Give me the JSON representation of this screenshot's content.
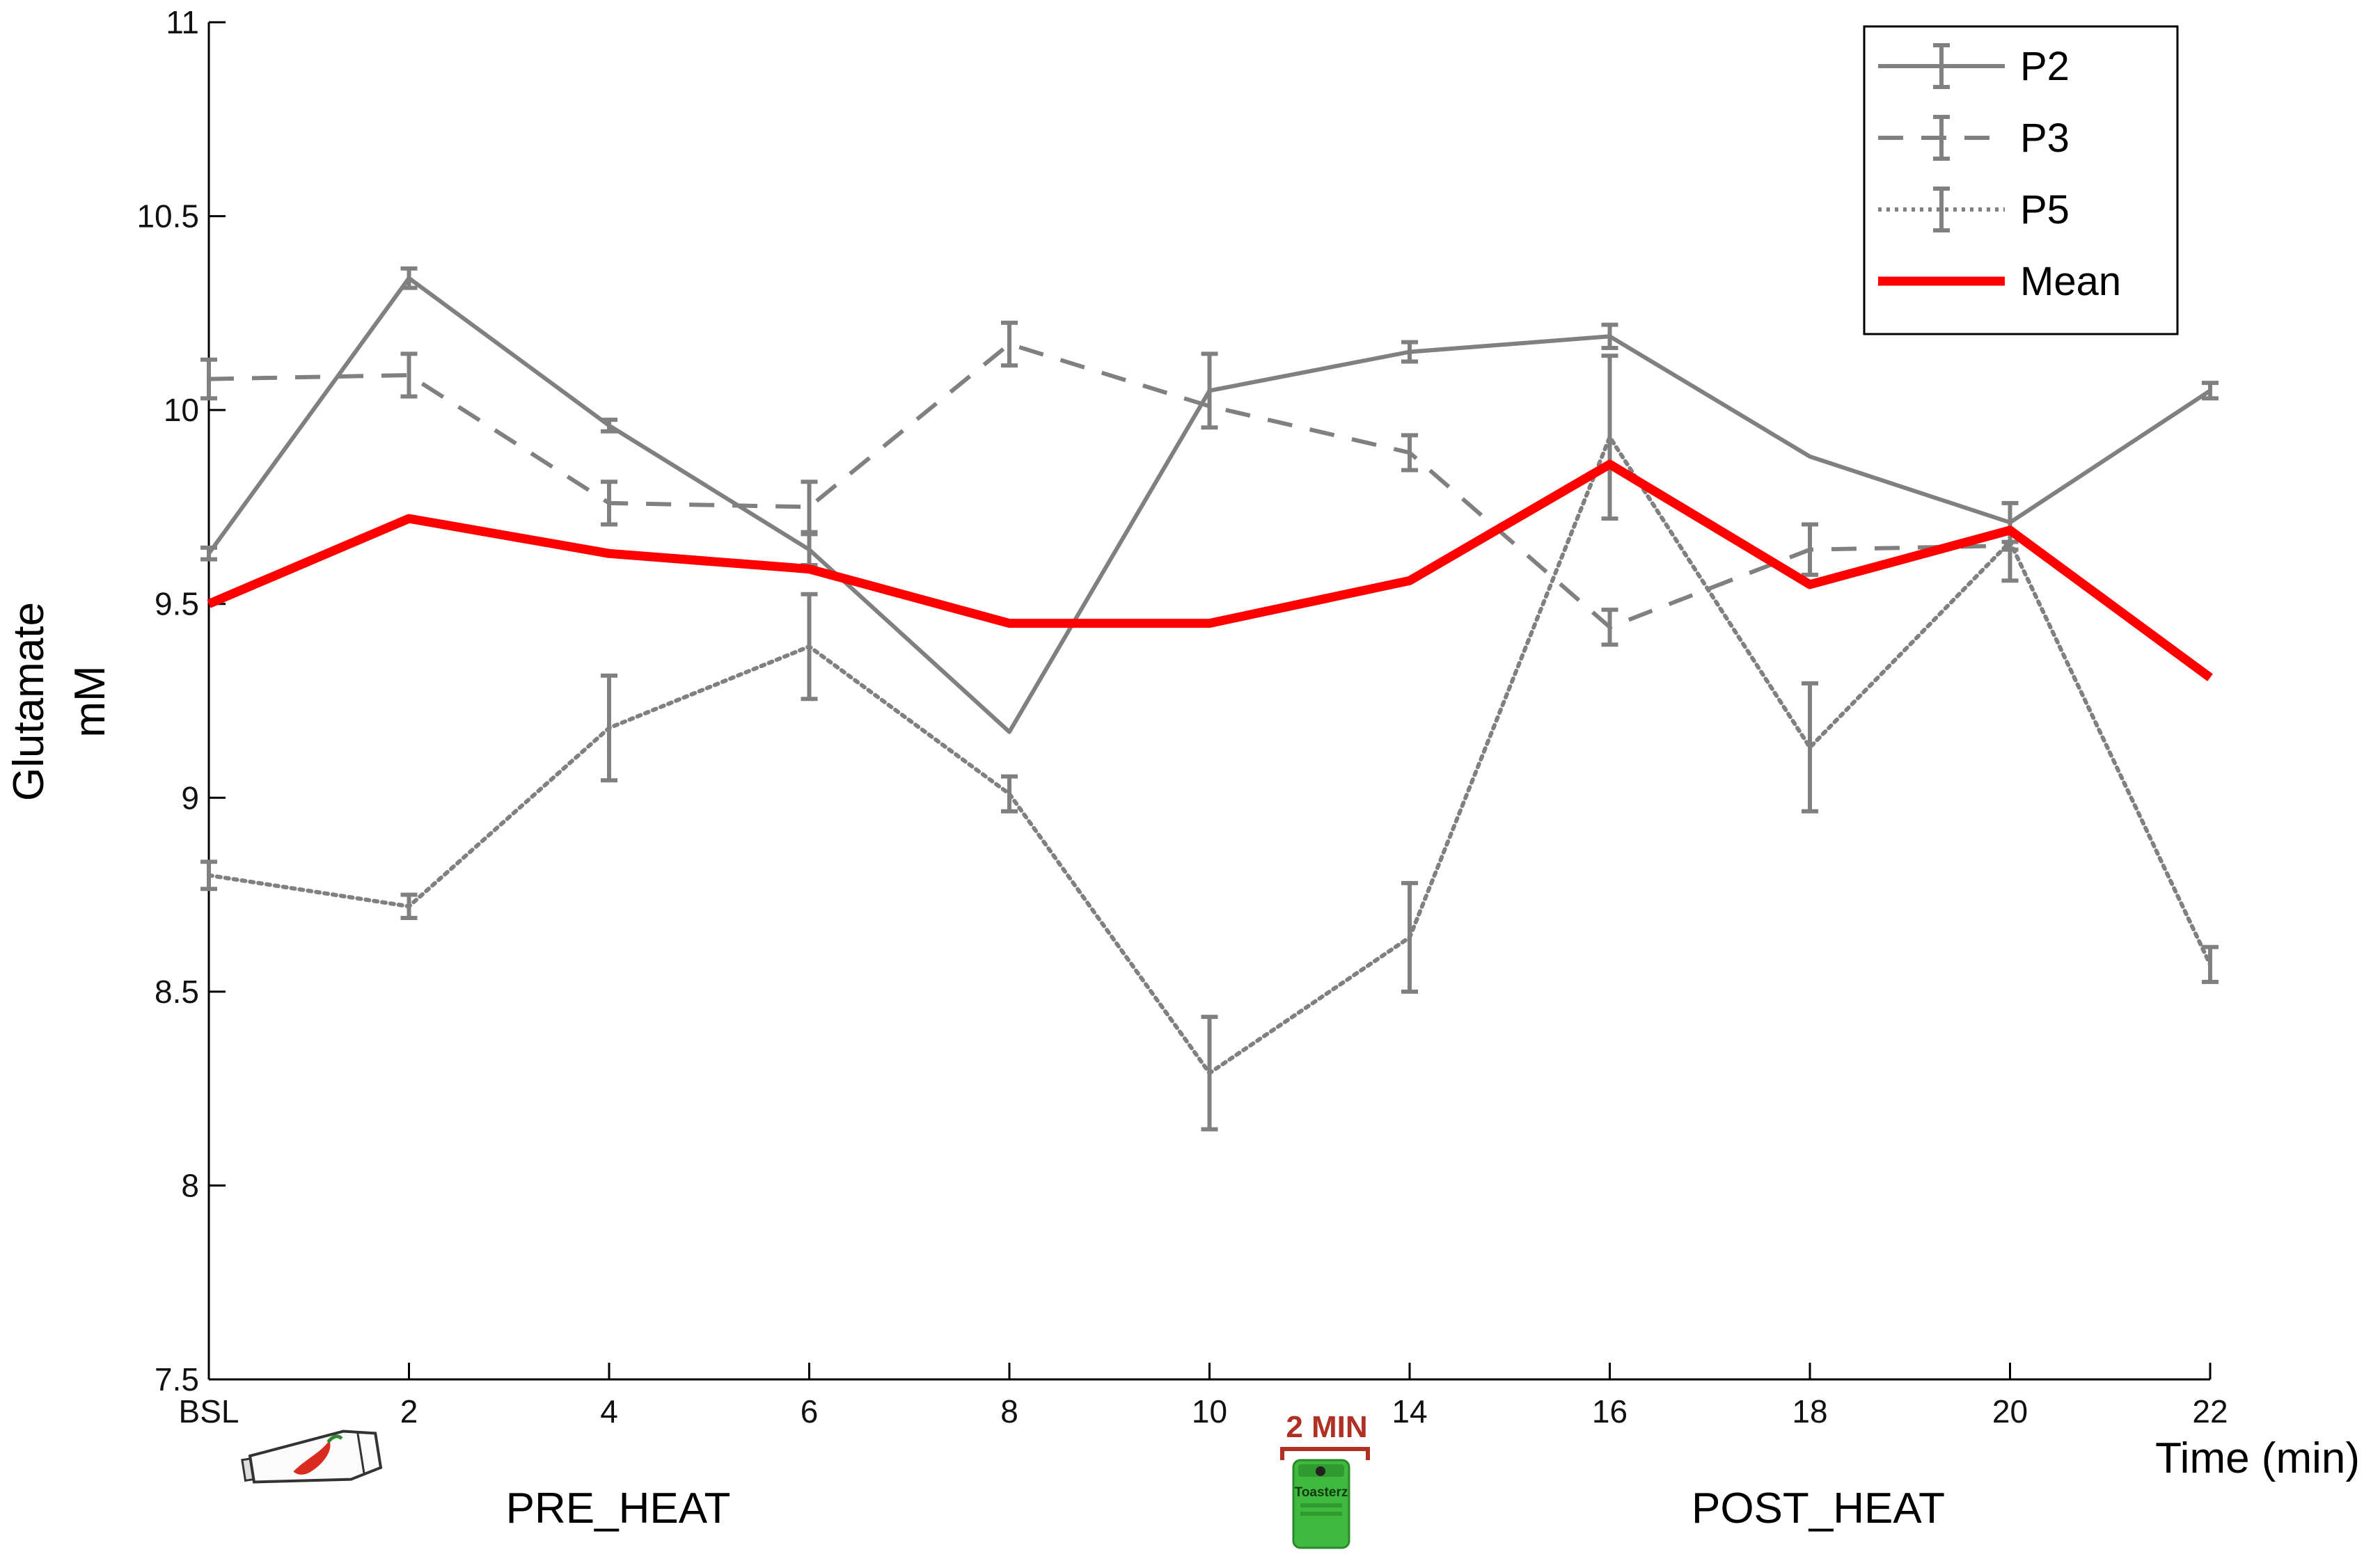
{
  "chart_data": {
    "type": "line",
    "ylabel_line1": "Glutamate",
    "ylabel_line2": "mM",
    "xlabel": "Time (min)",
    "ylim": [
      7.5,
      11
    ],
    "yticks": [
      "7.5",
      "8",
      "8.5",
      "9",
      "9.5",
      "10",
      "10.5",
      "11"
    ],
    "x": [
      "BSL",
      "2",
      "4",
      "6",
      "8",
      "10",
      "14",
      "16",
      "18",
      "20",
      "22"
    ],
    "series": [
      {
        "name": "P2",
        "style": "solid",
        "color": "#808080",
        "values": [
          9.63,
          10.34,
          9.96,
          9.64,
          9.17,
          10.05,
          10.15,
          10.19,
          9.88,
          9.71,
          10.05
        ],
        "errors": [
          0.015,
          0.025,
          0.015,
          0.04,
          0,
          0.095,
          0.025,
          0.03,
          0,
          0,
          0.02
        ]
      },
      {
        "name": "P3",
        "style": "dashed",
        "color": "#808080",
        "values": [
          10.08,
          10.09,
          9.76,
          9.75,
          10.17,
          10.01,
          9.89,
          9.44,
          9.64,
          9.65,
          null
        ],
        "errors": [
          0.05,
          0.055,
          0.055,
          0.065,
          0.055,
          0,
          0.045,
          0.045,
          0.065,
          0.01,
          0
        ]
      },
      {
        "name": "P5",
        "style": "dotted",
        "color": "#808080",
        "values": [
          8.8,
          8.72,
          9.18,
          9.39,
          9.01,
          8.29,
          8.64,
          9.93,
          9.13,
          9.66,
          8.57
        ],
        "errors": [
          0.035,
          0.03,
          0.135,
          0.135,
          0.045,
          0.145,
          0.14,
          0.21,
          0.165,
          0.1,
          0.045
        ]
      },
      {
        "name": "Mean",
        "style": "solid",
        "color": "#ff0000",
        "values": [
          9.5,
          9.72,
          9.63,
          9.59,
          9.45,
          9.45,
          9.56,
          9.86,
          9.55,
          9.69,
          9.31
        ],
        "errors": null
      }
    ],
    "legend_position": "top-right",
    "grid": false
  },
  "annotations": {
    "pre_phase": "PRE_HEAT",
    "post_phase": "POST_HEAT",
    "duration": "2 MIN",
    "capsaicin_icon": "capsaicin-cream-tube-icon",
    "heat_icon": "green-heat-pack-icon",
    "pack_brand": "Toasterz"
  },
  "colors": {
    "series_gray": "#808080",
    "mean_red": "#ff0000",
    "duration_red": "#b03026",
    "pack_green": "#3fba3f"
  }
}
